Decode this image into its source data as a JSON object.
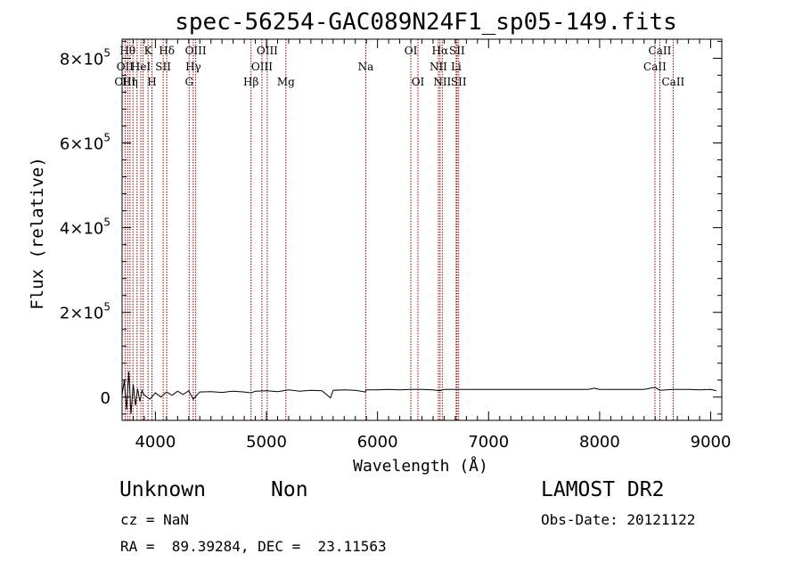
{
  "chart_data": {
    "type": "line",
    "title": "spec-56254-GAC089N24F1_sp05-149.fits",
    "xlabel": "Wavelength (Å)",
    "ylabel": "Flux (relative)",
    "xlim": [
      3700,
      9100
    ],
    "ylim": [
      -55000,
      845000
    ],
    "x_ticks": [
      4000,
      5000,
      6000,
      7000,
      8000,
      9000
    ],
    "y_ticks": [
      {
        "value": 0,
        "mantissa": "0",
        "exp": ""
      },
      {
        "value": 200000,
        "mantissa": "2×10",
        "exp": "5"
      },
      {
        "value": 400000,
        "mantissa": "4×10",
        "exp": "5"
      },
      {
        "value": 600000,
        "mantissa": "6×10",
        "exp": "5"
      },
      {
        "value": 800000,
        "mantissa": "8×10",
        "exp": "5"
      }
    ],
    "grid": false,
    "line_color": "#000000",
    "marker_color": "#8b0000",
    "spectrum": {
      "name": "",
      "x": [
        3700,
        3720,
        3740,
        3760,
        3780,
        3800,
        3820,
        3840,
        3860,
        3880,
        3900,
        3950,
        4000,
        4050,
        4100,
        4150,
        4200,
        4250,
        4300,
        4340,
        4400,
        4500,
        4600,
        4700,
        4800,
        4861,
        4900,
        5000,
        5100,
        5200,
        5300,
        5400,
        5500,
        5577,
        5600,
        5700,
        5800,
        5890,
        5900,
        6000,
        6100,
        6200,
        6300,
        6400,
        6500,
        6563,
        6600,
        6700,
        6800,
        6900,
        7000,
        7100,
        7200,
        7300,
        7400,
        7500,
        7600,
        7700,
        7800,
        7900,
        7950,
        8000,
        8100,
        8200,
        8300,
        8400,
        8498,
        8542,
        8600,
        8662,
        8700,
        8800,
        8900,
        9000,
        9050
      ],
      "y": [
        5000,
        40000,
        -30000,
        60000,
        -40000,
        30000,
        -20000,
        20000,
        -10000,
        15000,
        5000,
        -5000,
        10000,
        0,
        12000,
        4000,
        14000,
        6000,
        15000,
        -5000,
        12000,
        13000,
        11000,
        14000,
        12000,
        10000,
        14000,
        15000,
        13000,
        17000,
        14000,
        16000,
        15000,
        -2000,
        16000,
        17000,
        16000,
        12000,
        17000,
        17000,
        18000,
        17000,
        18000,
        18000,
        17000,
        15000,
        18000,
        18000,
        18000,
        18000,
        18000,
        18000,
        18000,
        18000,
        18000,
        18000,
        18000,
        18000,
        18000,
        18000,
        21000,
        18000,
        18000,
        18000,
        18000,
        18000,
        23000,
        16000,
        17000,
        18000,
        18000,
        18000,
        17000,
        18000,
        15000
      ]
    },
    "line_markers": [
      {
        "x": 3727,
        "row1": "",
        "row2": "OII",
        "row3": "OIII"
      },
      {
        "x": 3750,
        "row1": "Hθ",
        "row2": "",
        "row3": ""
      },
      {
        "x": 3771,
        "row1": "",
        "row2": "",
        "row3": "Hη"
      },
      {
        "x": 3798,
        "row1": "",
        "row2": "",
        "row3": ""
      },
      {
        "x": 3835,
        "row1": "",
        "row2": "",
        "row3": ""
      },
      {
        "x": 3869,
        "row1": "",
        "row2": "HeI",
        "row3": ""
      },
      {
        "x": 3889,
        "row1": "",
        "row2": "",
        "row3": ""
      },
      {
        "x": 3934,
        "row1": "K",
        "row2": "",
        "row3": ""
      },
      {
        "x": 3969,
        "row1": "",
        "row2": "",
        "row3": "H"
      },
      {
        "x": 4070,
        "row1": "",
        "row2": "SII",
        "row3": ""
      },
      {
        "x": 4102,
        "row1": "Hδ",
        "row2": "",
        "row3": ""
      },
      {
        "x": 4304,
        "row1": "",
        "row2": "",
        "row3": "G"
      },
      {
        "x": 4341,
        "row1": "",
        "row2": "Hγ",
        "row3": ""
      },
      {
        "x": 4363,
        "row1": "OIII",
        "row2": "",
        "row3": ""
      },
      {
        "x": 4861,
        "row1": "",
        "row2": "",
        "row3": "Hβ"
      },
      {
        "x": 4959,
        "row1": "",
        "row2": "OIII",
        "row3": ""
      },
      {
        "x": 5007,
        "row1": "OIII",
        "row2": "",
        "row3": ""
      },
      {
        "x": 5175,
        "row1": "",
        "row2": "",
        "row3": "Mg"
      },
      {
        "x": 5894,
        "row1": "",
        "row2": "Na",
        "row3": ""
      },
      {
        "x": 6300,
        "row1": "OI",
        "row2": "",
        "row3": ""
      },
      {
        "x": 6364,
        "row1": "",
        "row2": "",
        "row3": "OI"
      },
      {
        "x": 6548,
        "row1": "",
        "row2": "NII",
        "row3": ""
      },
      {
        "x": 6563,
        "row1": "Hα",
        "row2": "",
        "row3": ""
      },
      {
        "x": 6583,
        "row1": "",
        "row2": "",
        "row3": "NII"
      },
      {
        "x": 6708,
        "row1": "",
        "row2": "Li",
        "row3": ""
      },
      {
        "x": 6716,
        "row1": "SII",
        "row2": "",
        "row3": ""
      },
      {
        "x": 6731,
        "row1": "",
        "row2": "",
        "row3": "SII"
      },
      {
        "x": 8498,
        "row1": "",
        "row2": "CaII",
        "row3": ""
      },
      {
        "x": 8542,
        "row1": "CaII",
        "row2": "",
        "row3": ""
      },
      {
        "x": 8662,
        "row1": "",
        "row2": "",
        "row3": "CaII"
      }
    ]
  },
  "info": {
    "class_label": "Unknown",
    "subclass_label": "Non",
    "survey": "LAMOST DR2",
    "cz": "cz = NaN",
    "obs_date": "Obs-Date: 20121122",
    "coords": "RA =  89.39284, DEC =  23.11563"
  }
}
